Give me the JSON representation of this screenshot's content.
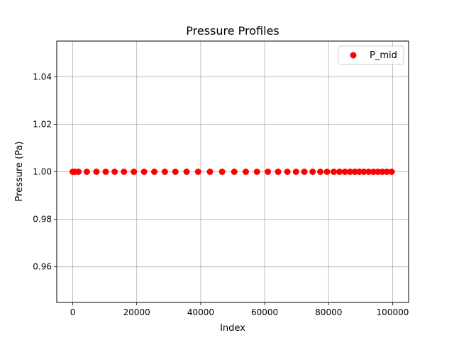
{
  "chart_data": {
    "type": "scatter",
    "title": "Pressure Profiles",
    "xlabel": "Index",
    "ylabel": "Pressure (Pa)",
    "xlim": [
      -5000,
      105000
    ],
    "ylim": [
      0.945,
      1.055
    ],
    "xticks": [
      0,
      20000,
      40000,
      60000,
      80000,
      100000
    ],
    "xtick_labels": [
      "0",
      "20000",
      "40000",
      "60000",
      "80000",
      "100000"
    ],
    "yticks": [
      0.96,
      0.98,
      1.0,
      1.02,
      1.04
    ],
    "ytick_labels": [
      "0.96",
      "0.98",
      "1.00",
      "1.02",
      "1.04"
    ],
    "grid": true,
    "legend_position": "top-right",
    "series": [
      {
        "name": "P_mid",
        "color": "#ff0000",
        "marker": "circle",
        "x": [
          0,
          600,
          1800,
          4400,
          7400,
          10300,
          13100,
          16000,
          19100,
          22300,
          25500,
          28800,
          32100,
          35600,
          39200,
          42900,
          46700,
          50500,
          54100,
          57600,
          61000,
          64200,
          67100,
          69800,
          72400,
          75000,
          77400,
          79500,
          81600,
          83400,
          85100,
          86700,
          88200,
          89600,
          91000,
          92500,
          94000,
          95400,
          96800,
          98200,
          99700
        ],
        "y": [
          1.0,
          1.0,
          1.0,
          1.0,
          1.0,
          1.0,
          1.0,
          1.0,
          1.0,
          1.0,
          1.0,
          1.0,
          1.0,
          1.0,
          1.0,
          1.0,
          1.0,
          1.0,
          1.0,
          1.0,
          1.0,
          1.0,
          1.0,
          1.0,
          1.0,
          1.0,
          1.0,
          1.0,
          1.0,
          1.0,
          1.0,
          1.0,
          1.0,
          1.0,
          1.0,
          1.0,
          1.0,
          1.0,
          1.0,
          1.0,
          1.0
        ]
      }
    ]
  }
}
